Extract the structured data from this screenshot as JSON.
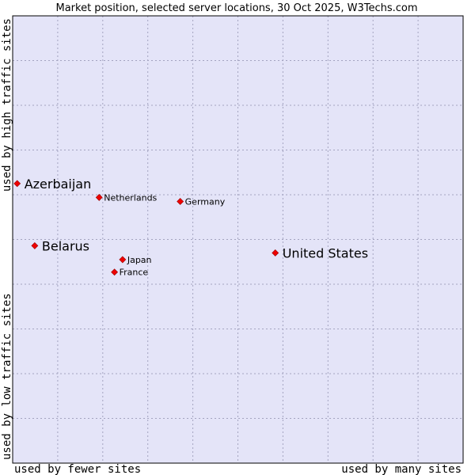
{
  "chart_data": {
    "type": "scatter",
    "title": "Market position, selected server locations, 30 Oct 2025, W3Techs.com",
    "xlabel_left": "used by fewer sites",
    "xlabel_right": "used by many sites",
    "ylabel_bottom": "used by low traffic sites",
    "ylabel_top": "used by high traffic sites",
    "xlim": [
      0,
      100
    ],
    "ylim": [
      0,
      100
    ],
    "grid": true,
    "colors": {
      "plot_background": "#e4e4f8",
      "marker": "#ee0000",
      "marker_stroke": "#990000",
      "frame": "#000000"
    },
    "points": [
      {
        "label": "Azerbaijan",
        "x": 1.0,
        "y": 62.5,
        "emphasis": true
      },
      {
        "label": "Netherlands",
        "x": 19.2,
        "y": 59.4,
        "emphasis": false
      },
      {
        "label": "Germany",
        "x": 37.2,
        "y": 58.5,
        "emphasis": false
      },
      {
        "label": "Belarus",
        "x": 4.9,
        "y": 48.6,
        "emphasis": true
      },
      {
        "label": "United States",
        "x": 58.3,
        "y": 47.0,
        "emphasis": true
      },
      {
        "label": "Japan",
        "x": 24.4,
        "y": 45.5,
        "emphasis": false
      },
      {
        "label": "France",
        "x": 22.6,
        "y": 42.7,
        "emphasis": false
      }
    ]
  }
}
